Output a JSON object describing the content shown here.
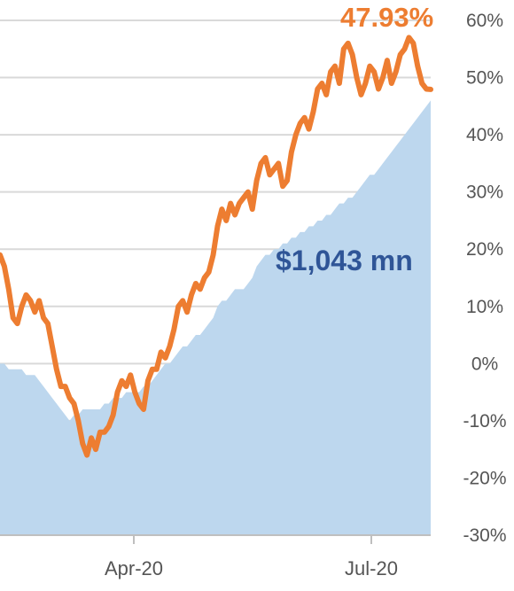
{
  "chart_data": {
    "type": "line",
    "title": "",
    "xlabel": "",
    "ylabel": "",
    "x_ticks": [
      "Apr-20",
      "Jul-20"
    ],
    "y_ticks": [
      "60%",
      "50%",
      "40%",
      "30%",
      "20%",
      "10%",
      "0%",
      "-10%",
      "-20%",
      "-30%"
    ],
    "ylim": [
      -30,
      60
    ],
    "grid": true,
    "legend": "none",
    "annotations": {
      "line_end_label": "47.93%",
      "area_label": "$1,043 mn"
    },
    "colors": {
      "line": "#ED7D31",
      "area": "#BDD7EE",
      "area_label": "#2F5597",
      "grid": "#D9D9D9",
      "axis_text": "#555555"
    },
    "series": [
      {
        "type": "line",
        "values": [
          19,
          17,
          13,
          8,
          7,
          10,
          12,
          11,
          9,
          11,
          8,
          7,
          3,
          -1,
          -4,
          -4,
          -6,
          -7,
          -10,
          -14,
          -16,
          -13,
          -15,
          -12,
          -12,
          -11,
          -9,
          -5,
          -3,
          -4,
          -2,
          -5,
          -7,
          -8,
          -3,
          -1,
          -1,
          2,
          1,
          3,
          6,
          10,
          11,
          9,
          12,
          14,
          13,
          15,
          16,
          19,
          24,
          27,
          25,
          28,
          26,
          28,
          29,
          30,
          27,
          32,
          35,
          36,
          33,
          34,
          35,
          31,
          32,
          37,
          40,
          42,
          43,
          41,
          44,
          48,
          49,
          47,
          51,
          52,
          49,
          55,
          56,
          54,
          50,
          47,
          49,
          52,
          51,
          48,
          50,
          53,
          49,
          51,
          54,
          55,
          57,
          56,
          52,
          49,
          48,
          47.93
        ]
      },
      {
        "type": "area",
        "values": [
          0,
          0,
          -1,
          -1,
          -1,
          -1,
          -2,
          -2,
          -2,
          -3,
          -4,
          -5,
          -6,
          -7,
          -8,
          -9,
          -10,
          -9,
          -9,
          -8,
          -8,
          -8,
          -8,
          -8,
          -7,
          -7,
          -6,
          -6,
          -6,
          -5,
          -5,
          -5,
          -5,
          -4,
          -4,
          -3,
          -2,
          -1,
          0,
          0,
          1,
          2,
          3,
          3,
          4,
          5,
          5,
          6,
          7,
          8,
          10,
          11,
          11,
          12,
          13,
          13,
          13,
          14,
          15,
          17,
          18,
          19,
          19,
          20,
          20,
          21,
          21,
          22,
          22,
          23,
          23,
          24,
          24,
          25,
          25,
          26,
          26,
          27,
          28,
          28,
          29,
          29,
          30,
          31,
          32,
          33,
          33,
          34,
          35,
          36,
          37,
          38,
          39,
          40,
          41,
          42,
          43,
          44,
          45,
          46
        ]
      }
    ]
  }
}
